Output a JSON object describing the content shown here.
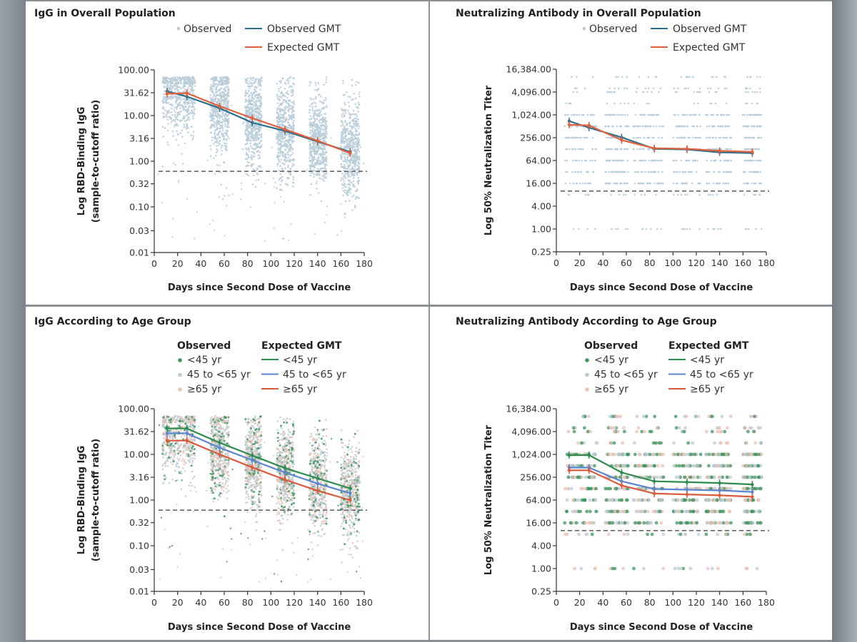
{
  "colors": {
    "observed_dot": "#b7ccd8",
    "observed_gmt": "#2d6f8e",
    "expected_gmt": "#e0603c",
    "age_lt45": "#2e8b4e",
    "age_45_65": "#5b86cf",
    "age_ge65": "#db5a3a",
    "obs_lt45": "#3f9460",
    "obs_45_65": "#bccbd3",
    "obs_ge65": "#e8c2b6",
    "threshold": "#666666"
  },
  "chart_data": [
    {
      "id": "igg-overall",
      "type": "scatter",
      "title": "IgG in Overall Population",
      "xlabel": "Days since Second Dose of Vaccine",
      "ylabel": [
        "Log RBD-Binding IgG",
        "(sample-to-cutoff ratio)"
      ],
      "xlim": [
        0,
        180
      ],
      "ylim": [
        0.01,
        100
      ],
      "yscale": "log10",
      "xticks": [
        0,
        20,
        40,
        60,
        80,
        100,
        120,
        140,
        160,
        180
      ],
      "yticks": [
        {
          "v": 100,
          "label": "100.00"
        },
        {
          "v": 31.62,
          "label": "31.62"
        },
        {
          "v": 10,
          "label": "10.00"
        },
        {
          "v": 3.16,
          "label": "3.16"
        },
        {
          "v": 1,
          "label": "1.00"
        },
        {
          "v": 0.32,
          "label": "0.32"
        },
        {
          "v": 0.1,
          "label": "0.10"
        },
        {
          "v": 0.03,
          "label": "0.03"
        },
        {
          "v": 0.01,
          "label": "0.01"
        }
      ],
      "threshold": 0.6,
      "legend": {
        "items": [
          {
            "kind": "dot",
            "label": "Observed",
            "color_key": "observed_dot"
          },
          {
            "kind": "line",
            "label": "Observed GMT",
            "color_key": "observed_gmt"
          },
          {
            "kind": "line",
            "label": "Expected GMT",
            "color_key": "expected_gmt"
          }
        ]
      },
      "observed_clusters": [
        {
          "day_range": [
            7,
            35
          ],
          "center": 28,
          "spread": 0.45
        },
        {
          "day_range": [
            48,
            64
          ],
          "center": 15,
          "spread": 0.5
        },
        {
          "day_range": [
            78,
            92
          ],
          "center": 8,
          "spread": 0.5
        },
        {
          "day_range": [
            105,
            120
          ],
          "center": 5,
          "spread": 0.5
        },
        {
          "day_range": [
            133,
            148
          ],
          "center": 3,
          "spread": 0.5
        },
        {
          "day_range": [
            160,
            176
          ],
          "center": 1.8,
          "spread": 0.5
        }
      ],
      "series": [
        {
          "name": "Observed GMT",
          "color_key": "observed_gmt",
          "x": [
            11,
            28,
            56,
            84,
            112,
            140,
            168
          ],
          "y": [
            34,
            26,
            14.5,
            7,
            4.6,
            2.7,
            1.6
          ]
        },
        {
          "name": "Expected GMT",
          "color_key": "expected_gmt",
          "x": [
            11,
            28,
            56,
            84,
            112,
            140,
            168
          ],
          "y": [
            30,
            31,
            16,
            8.8,
            5,
            2.8,
            1.5
          ]
        }
      ]
    },
    {
      "id": "nab-overall",
      "type": "scatter",
      "title": "Neutralizing Antibody in Overall Population",
      "xlabel": "Days since Second Dose of Vaccine",
      "ylabel": [
        "Log 50% Neutralization Titer"
      ],
      "xlim": [
        0,
        180
      ],
      "ylim": [
        0.25,
        16384
      ],
      "yscale": "log2",
      "xticks": [
        0,
        20,
        40,
        60,
        80,
        100,
        120,
        140,
        160,
        180
      ],
      "yticks": [
        {
          "v": 16384,
          "label": "16,384.00"
        },
        {
          "v": 4096,
          "label": "4,096.00"
        },
        {
          "v": 1024,
          "label": "1,024.00"
        },
        {
          "v": 256,
          "label": "256.00"
        },
        {
          "v": 64,
          "label": "64.00"
        },
        {
          "v": 16,
          "label": "16.00"
        },
        {
          "v": 4,
          "label": "4.00"
        },
        {
          "v": 1,
          "label": "1.00"
        },
        {
          "v": 0.25,
          "label": "0.25"
        }
      ],
      "threshold": 10,
      "legend": {
        "items": [
          {
            "kind": "dot",
            "label": "Observed",
            "color_key": "observed_dot"
          },
          {
            "kind": "line",
            "label": "Observed GMT",
            "color_key": "observed_gmt"
          },
          {
            "kind": "line",
            "label": "Expected GMT",
            "color_key": "expected_gmt"
          }
        ]
      },
      "observed_levels": [
        10240,
        5120,
        4096,
        2048,
        1024,
        512,
        256,
        128,
        64,
        32,
        16,
        8,
        1
      ],
      "series": [
        {
          "name": "Observed GMT",
          "color_key": "observed_gmt",
          "x": [
            11,
            28,
            56,
            84,
            112,
            140,
            168
          ],
          "y": [
            700,
            470,
            260,
            130,
            125,
            105,
            100
          ]
        },
        {
          "name": "Expected GMT",
          "color_key": "expected_gmt",
          "x": [
            11,
            28,
            56,
            84,
            112,
            140,
            168
          ],
          "y": [
            560,
            540,
            220,
            135,
            130,
            115,
            108
          ]
        }
      ]
    },
    {
      "id": "igg-age",
      "type": "scatter",
      "title": "IgG According to Age Group",
      "xlabel": "Days since Second Dose of Vaccine",
      "ylabel": [
        "Log RBD-Binding IgG",
        "(sample-to-cutoff ratio)"
      ],
      "xlim": [
        0,
        180
      ],
      "ylim": [
        0.01,
        100
      ],
      "yscale": "log10",
      "xticks": [
        0,
        20,
        40,
        60,
        80,
        100,
        120,
        140,
        160,
        180
      ],
      "yticks": [
        {
          "v": 100,
          "label": "100.00"
        },
        {
          "v": 31.62,
          "label": "31.62"
        },
        {
          "v": 10,
          "label": "10.00"
        },
        {
          "v": 3.16,
          "label": "3.16"
        },
        {
          "v": 1,
          "label": "1.00"
        },
        {
          "v": 0.32,
          "label": "0.32"
        },
        {
          "v": 0.1,
          "label": "0.10"
        },
        {
          "v": 0.03,
          "label": "0.03"
        },
        {
          "v": 0.01,
          "label": "0.01"
        }
      ],
      "threshold": 0.6,
      "legend": {
        "observed_header": "Observed",
        "expected_header": "Expected GMT",
        "observed": [
          {
            "label": "<45 yr",
            "color_key": "obs_lt45"
          },
          {
            "label": "45 to <65 yr",
            "color_key": "obs_45_65"
          },
          {
            "label": "≥65 yr",
            "color_key": "obs_ge65"
          }
        ],
        "expected": [
          {
            "label": "<45 yr",
            "color_key": "age_lt45"
          },
          {
            "label": "45 to <65 yr",
            "color_key": "age_45_65"
          },
          {
            "label": "≥65 yr",
            "color_key": "age_ge65"
          }
        ]
      },
      "observed_clusters": [
        {
          "day_range": [
            7,
            35
          ],
          "center": 25,
          "spread": 0.45
        },
        {
          "day_range": [
            48,
            64
          ],
          "center": 13,
          "spread": 0.5
        },
        {
          "day_range": [
            78,
            92
          ],
          "center": 7,
          "spread": 0.5
        },
        {
          "day_range": [
            105,
            120
          ],
          "center": 4,
          "spread": 0.5
        },
        {
          "day_range": [
            133,
            148
          ],
          "center": 2.5,
          "spread": 0.5
        },
        {
          "day_range": [
            160,
            176
          ],
          "center": 1.4,
          "spread": 0.5
        }
      ],
      "series": [
        {
          "name": "<45 yr",
          "color_key": "age_lt45",
          "x": [
            11,
            28,
            56,
            84,
            112,
            140,
            168
          ],
          "y": [
            37,
            37,
            18,
            9.5,
            5,
            3,
            1.8
          ]
        },
        {
          "name": "45 to <65 yr",
          "color_key": "age_45_65",
          "x": [
            11,
            28,
            56,
            84,
            112,
            140,
            168
          ],
          "y": [
            29,
            29,
            14,
            7.5,
            4,
            2.3,
            1.4
          ]
        },
        {
          "name": "≥65 yr",
          "color_key": "age_ge65",
          "x": [
            11,
            28,
            56,
            84,
            112,
            140,
            168
          ],
          "y": [
            20,
            20,
            10,
            5.2,
            2.8,
            1.6,
            1.0
          ]
        }
      ]
    },
    {
      "id": "nab-age",
      "type": "scatter",
      "title": "Neutralizing Antibody According to Age Group",
      "xlabel": "Days since Second Dose of Vaccine",
      "ylabel": [
        "Log 50% Neutralization Titer"
      ],
      "xlim": [
        0,
        180
      ],
      "ylim": [
        0.25,
        16384
      ],
      "yscale": "log2",
      "xticks": [
        0,
        20,
        40,
        60,
        80,
        100,
        120,
        140,
        160,
        180
      ],
      "yticks": [
        {
          "v": 16384,
          "label": "16,384.00"
        },
        {
          "v": 4096,
          "label": "4,096.00"
        },
        {
          "v": 1024,
          "label": "1,024.00"
        },
        {
          "v": 256,
          "label": "256.00"
        },
        {
          "v": 64,
          "label": "64.00"
        },
        {
          "v": 16,
          "label": "16.00"
        },
        {
          "v": 4,
          "label": "4.00"
        },
        {
          "v": 1,
          "label": "1.00"
        },
        {
          "v": 0.25,
          "label": "0.25"
        }
      ],
      "threshold": 10,
      "legend": {
        "observed_header": "Observed",
        "expected_header": "Expected GMT",
        "observed": [
          {
            "label": "<45 yr",
            "color_key": "obs_lt45"
          },
          {
            "label": "45 to <65 yr",
            "color_key": "obs_45_65"
          },
          {
            "label": "≥65 yr",
            "color_key": "obs_ge65"
          }
        ],
        "expected": [
          {
            "label": "<45 yr",
            "color_key": "age_lt45"
          },
          {
            "label": "45 to <65 yr",
            "color_key": "age_45_65"
          },
          {
            "label": "≥65 yr",
            "color_key": "age_ge65"
          }
        ]
      },
      "observed_levels": [
        10240,
        5120,
        4096,
        2048,
        1024,
        512,
        256,
        128,
        64,
        32,
        16,
        8,
        1
      ],
      "series": [
        {
          "name": "<45 yr",
          "color_key": "age_lt45",
          "x": [
            11,
            28,
            56,
            84,
            112,
            140,
            168
          ],
          "y": [
            980,
            980,
            340,
            200,
            190,
            180,
            165
          ]
        },
        {
          "name": "45 to <65 yr",
          "color_key": "age_45_65",
          "x": [
            11,
            28,
            56,
            84,
            112,
            140,
            168
          ],
          "y": [
            460,
            460,
            200,
            125,
            120,
            115,
            105
          ]
        },
        {
          "name": "≥65 yr",
          "color_key": "age_ge65",
          "x": [
            11,
            28,
            56,
            84,
            112,
            140,
            168
          ],
          "y": [
            390,
            390,
            155,
            95,
            90,
            85,
            78
          ]
        }
      ]
    }
  ]
}
